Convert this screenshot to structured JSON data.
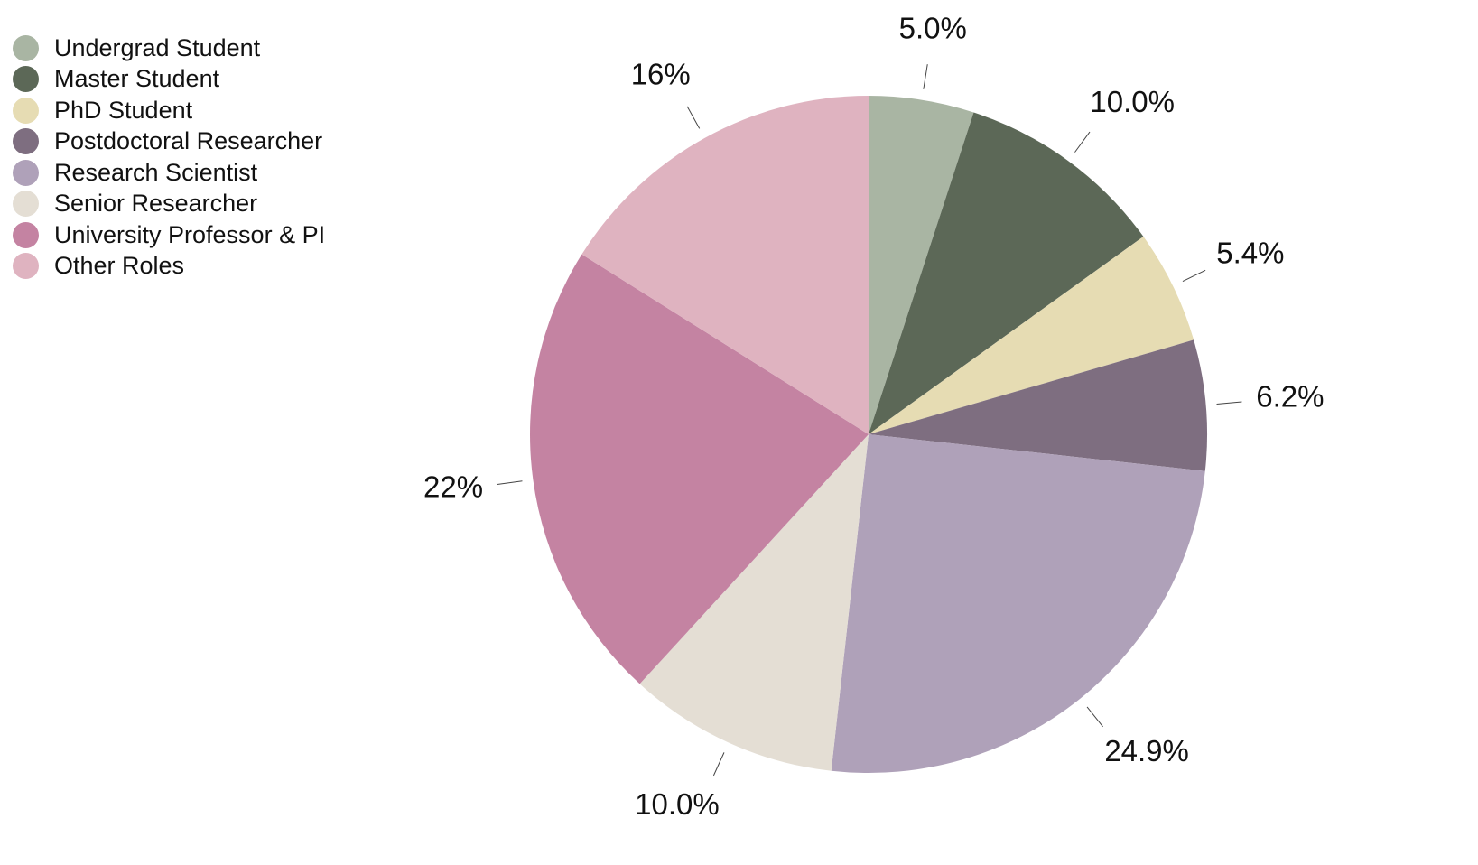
{
  "chart_data": {
    "type": "pie",
    "legend_position": "top-left",
    "start_angle": "12 o'clock",
    "direction": "clockwise",
    "slices": [
      {
        "label": "Undergrad Student",
        "value": 5.0,
        "display": "5.0%",
        "color": "#a9b5a3"
      },
      {
        "label": "Master Student",
        "value": 10.0,
        "display": "10.0%",
        "color": "#5c6857"
      },
      {
        "label": "PhD Student",
        "value": 5.4,
        "display": "5.4%",
        "color": "#e6dcb3"
      },
      {
        "label": "Postdoctoral Researcher",
        "value": 6.2,
        "display": "6.2%",
        "color": "#7e6e80"
      },
      {
        "label": "Research Scientist",
        "value": 24.9,
        "display": "24.9%",
        "color": "#afa1b9"
      },
      {
        "label": "Senior Researcher",
        "value": 10.0,
        "display": "10.0%",
        "color": "#e4ded4"
      },
      {
        "label": "University Professor & PI",
        "value": 22,
        "display": "22%",
        "color": "#c483a2"
      },
      {
        "label": "Other Roles",
        "value": 16,
        "display": "16%",
        "color": "#dfb3c0"
      }
    ]
  }
}
